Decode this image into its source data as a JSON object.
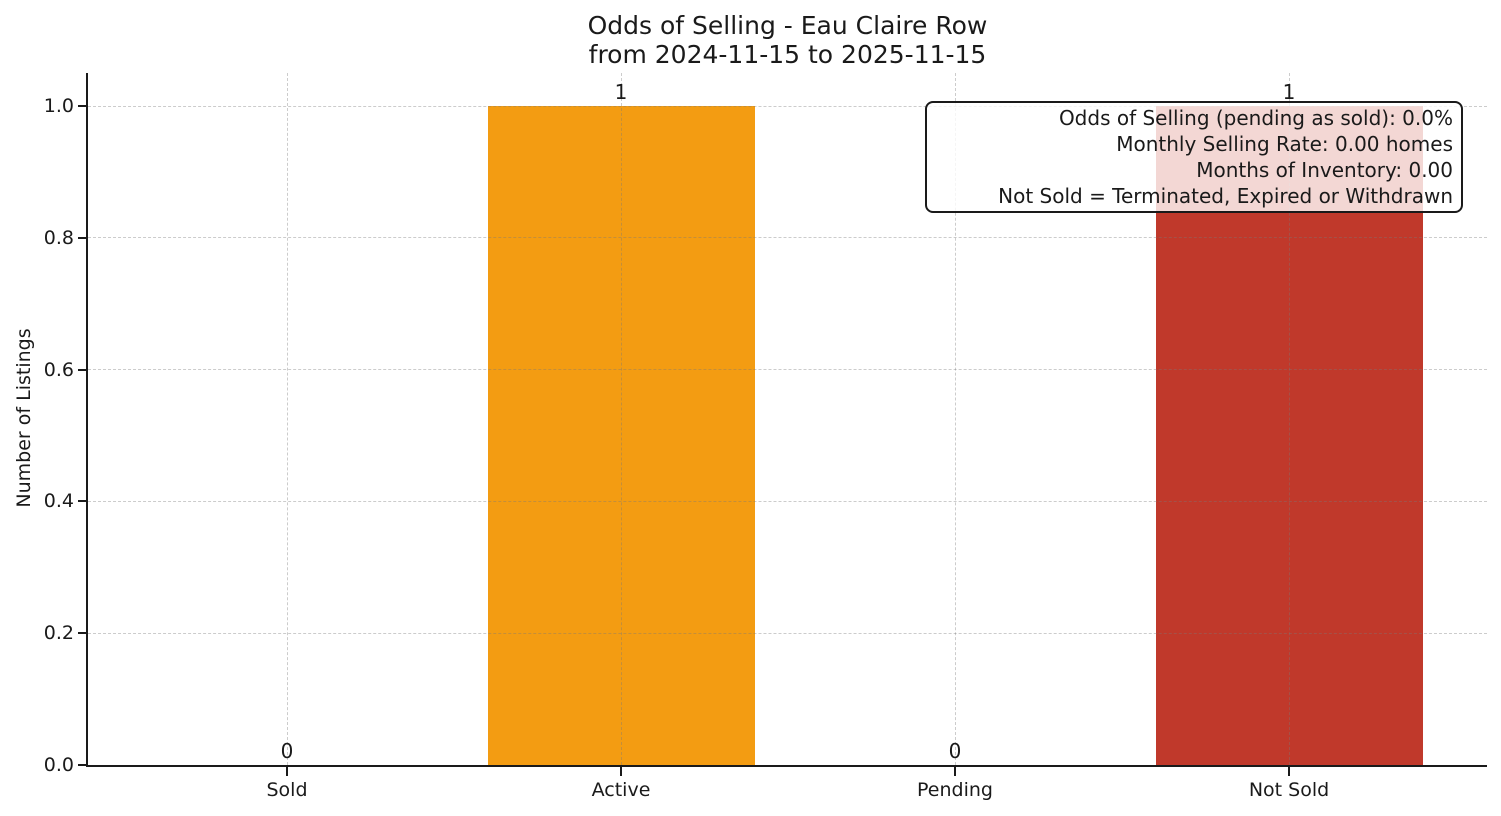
{
  "chart_data": {
    "type": "bar",
    "title": "Odds of Selling - Eau Claire Row",
    "subtitle": "from 2024-11-15 to 2025-11-15",
    "ylabel": "Number of Listings",
    "xlabel": "",
    "categories": [
      "Sold",
      "Active",
      "Pending",
      "Not Sold"
    ],
    "values": [
      0,
      1,
      0,
      1
    ],
    "value_labels": [
      "0",
      "1",
      "0",
      "1"
    ],
    "bar_colors": [
      null,
      "#f39c12",
      null,
      "#c0392b"
    ],
    "yticks": [
      0.0,
      0.2,
      0.4,
      0.6,
      0.8,
      1.0
    ],
    "ytick_labels": [
      "0.0",
      "0.2",
      "0.4",
      "0.6",
      "0.8",
      "1.0"
    ],
    "ylim": [
      0,
      1.05
    ],
    "grid": {
      "visible": true,
      "style": "dashed",
      "axes": "both"
    },
    "legend": null,
    "annotation": {
      "lines": [
        "Odds of Selling (pending as sold): 0.0%",
        "Monthly Selling Rate: 0.00 homes",
        "Months of Inventory: 0.00",
        "Not Sold = Terminated, Expired or Withdrawn"
      ]
    },
    "colors": {
      "axis": "#1a1a1a",
      "grid": "#787878",
      "background": "#ffffff"
    }
  }
}
